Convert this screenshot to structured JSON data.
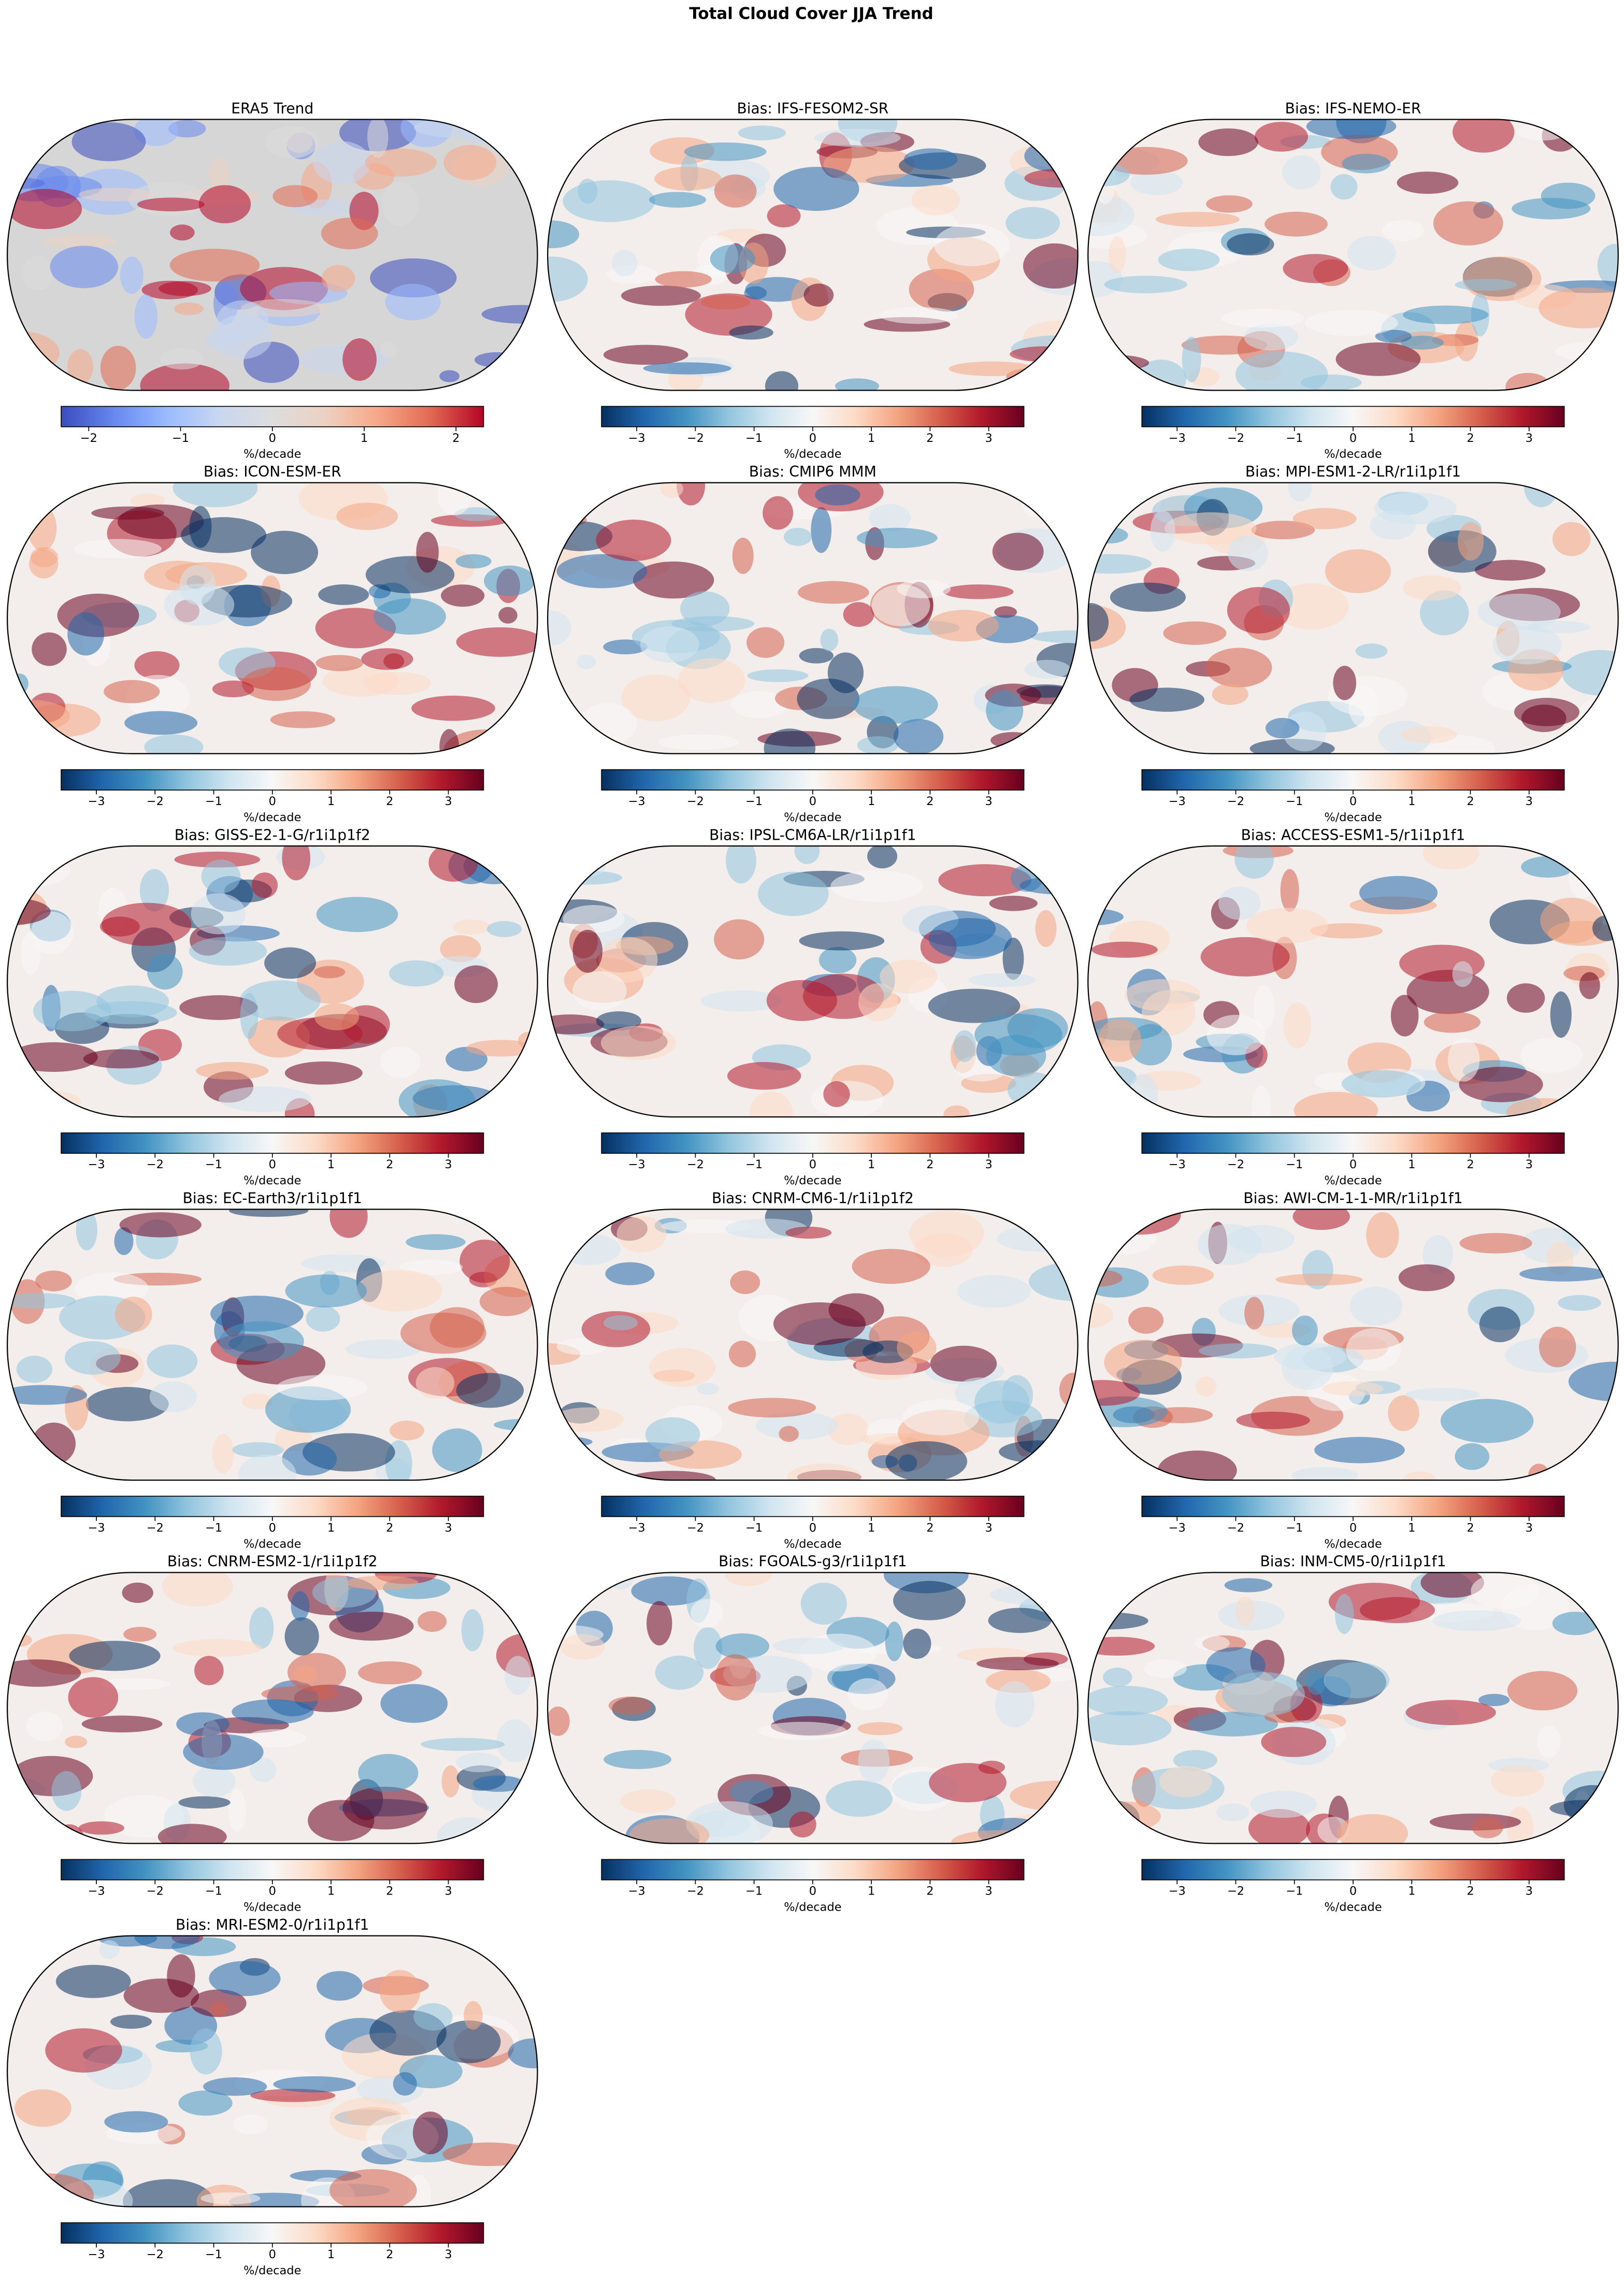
{
  "title": "Total Cloud Cover JJA Trend",
  "chart_data": [
    {
      "type": "map",
      "title": "ERA5 Trend",
      "colorbar": {
        "colormap": "coolwarm",
        "clim": [
          -2.3,
          2.3
        ],
        "ticks": [
          {
            "value": -2,
            "label": "−2"
          },
          {
            "value": -1,
            "label": "−1"
          },
          0,
          1,
          2
        ],
        "label": "%/decade"
      }
    },
    {
      "type": "map",
      "title": "Bias: IFS-FESOM2-SR",
      "colorbar": {
        "colormap": "RdBu_r",
        "clim": [
          -3.6,
          3.6
        ],
        "ticks": [
          {
            "value": -3,
            "label": "−3"
          },
          {
            "value": -2,
            "label": "−2"
          },
          {
            "value": -1,
            "label": "−1"
          },
          0,
          1,
          2,
          3
        ],
        "label": "%/decade"
      }
    },
    {
      "type": "map",
      "title": "Bias: IFS-NEMO-ER",
      "colorbar": {
        "colormap": "RdBu_r",
        "clim": [
          -3.6,
          3.6
        ],
        "ticks": [
          {
            "value": -3,
            "label": "−3"
          },
          {
            "value": -2,
            "label": "−2"
          },
          {
            "value": -1,
            "label": "−1"
          },
          0,
          1,
          2,
          3
        ],
        "label": "%/decade"
      }
    },
    {
      "type": "map",
      "title": "Bias: ICON-ESM-ER",
      "colorbar": {
        "colormap": "RdBu_r",
        "clim": [
          -3.6,
          3.6
        ],
        "ticks": [
          {
            "value": -3,
            "label": "−3"
          },
          {
            "value": -2,
            "label": "−2"
          },
          {
            "value": -1,
            "label": "−1"
          },
          0,
          1,
          2,
          3
        ],
        "label": "%/decade"
      }
    },
    {
      "type": "map",
      "title": "Bias: CMIP6 MMM",
      "colorbar": {
        "colormap": "RdBu_r",
        "clim": [
          -3.6,
          3.6
        ],
        "ticks": [
          {
            "value": -3,
            "label": "−3"
          },
          {
            "value": -2,
            "label": "−2"
          },
          {
            "value": -1,
            "label": "−1"
          },
          0,
          1,
          2,
          3
        ],
        "label": "%/decade"
      }
    },
    {
      "type": "map",
      "title": "Bias: MPI-ESM1-2-LR/r1i1p1f1",
      "colorbar": {
        "colormap": "RdBu_r",
        "clim": [
          -3.6,
          3.6
        ],
        "ticks": [
          {
            "value": -3,
            "label": "−3"
          },
          {
            "value": -2,
            "label": "−2"
          },
          {
            "value": -1,
            "label": "−1"
          },
          0,
          1,
          2,
          3
        ],
        "label": "%/decade"
      }
    },
    {
      "type": "map",
      "title": "Bias: GISS-E2-1-G/r1i1p1f2",
      "colorbar": {
        "colormap": "RdBu_r",
        "clim": [
          -3.6,
          3.6
        ],
        "ticks": [
          {
            "value": -3,
            "label": "−3"
          },
          {
            "value": -2,
            "label": "−2"
          },
          {
            "value": -1,
            "label": "−1"
          },
          0,
          1,
          2,
          3
        ],
        "label": "%/decade"
      }
    },
    {
      "type": "map",
      "title": "Bias: IPSL-CM6A-LR/r1i1p1f1",
      "colorbar": {
        "colormap": "RdBu_r",
        "clim": [
          -3.6,
          3.6
        ],
        "ticks": [
          {
            "value": -3,
            "label": "−3"
          },
          {
            "value": -2,
            "label": "−2"
          },
          {
            "value": -1,
            "label": "−1"
          },
          0,
          1,
          2,
          3
        ],
        "label": "%/decade"
      }
    },
    {
      "type": "map",
      "title": "Bias: ACCESS-ESM1-5/r1i1p1f1",
      "colorbar": {
        "colormap": "RdBu_r",
        "clim": [
          -3.6,
          3.6
        ],
        "ticks": [
          {
            "value": -3,
            "label": "−3"
          },
          {
            "value": -2,
            "label": "−2"
          },
          {
            "value": -1,
            "label": "−1"
          },
          0,
          1,
          2,
          3
        ],
        "label": "%/decade"
      }
    },
    {
      "type": "map",
      "title": "Bias: EC-Earth3/r1i1p1f1",
      "colorbar": {
        "colormap": "RdBu_r",
        "clim": [
          -3.6,
          3.6
        ],
        "ticks": [
          {
            "value": -3,
            "label": "−3"
          },
          {
            "value": -2,
            "label": "−2"
          },
          {
            "value": -1,
            "label": "−1"
          },
          0,
          1,
          2,
          3
        ],
        "label": "%/decade"
      }
    },
    {
      "type": "map",
      "title": "Bias: CNRM-CM6-1/r1i1p1f2",
      "colorbar": {
        "colormap": "RdBu_r",
        "clim": [
          -3.6,
          3.6
        ],
        "ticks": [
          {
            "value": -3,
            "label": "−3"
          },
          {
            "value": -2,
            "label": "−2"
          },
          {
            "value": -1,
            "label": "−1"
          },
          0,
          1,
          2,
          3
        ],
        "label": "%/decade"
      }
    },
    {
      "type": "map",
      "title": "Bias: AWI-CM-1-1-MR/r1i1p1f1",
      "colorbar": {
        "colormap": "RdBu_r",
        "clim": [
          -3.6,
          3.6
        ],
        "ticks": [
          {
            "value": -3,
            "label": "−3"
          },
          {
            "value": -2,
            "label": "−2"
          },
          {
            "value": -1,
            "label": "−1"
          },
          0,
          1,
          2,
          3
        ],
        "label": "%/decade"
      }
    },
    {
      "type": "map",
      "title": "Bias: CNRM-ESM2-1/r1i1p1f2",
      "colorbar": {
        "colormap": "RdBu_r",
        "clim": [
          -3.6,
          3.6
        ],
        "ticks": [
          {
            "value": -3,
            "label": "−3"
          },
          {
            "value": -2,
            "label": "−2"
          },
          {
            "value": -1,
            "label": "−1"
          },
          0,
          1,
          2,
          3
        ],
        "label": "%/decade"
      }
    },
    {
      "type": "map",
      "title": "Bias: FGOALS-g3/r1i1p1f1",
      "colorbar": {
        "colormap": "RdBu_r",
        "clim": [
          -3.6,
          3.6
        ],
        "ticks": [
          {
            "value": -3,
            "label": "−3"
          },
          {
            "value": -2,
            "label": "−2"
          },
          {
            "value": -1,
            "label": "−1"
          },
          0,
          1,
          2,
          3
        ],
        "label": "%/decade"
      }
    },
    {
      "type": "map",
      "title": "Bias: INM-CM5-0/r1i1p1f1",
      "colorbar": {
        "colormap": "RdBu_r",
        "clim": [
          -3.6,
          3.6
        ],
        "ticks": [
          {
            "value": -3,
            "label": "−3"
          },
          {
            "value": -2,
            "label": "−2"
          },
          {
            "value": -1,
            "label": "−1"
          },
          0,
          1,
          2,
          3
        ],
        "label": "%/decade"
      }
    },
    {
      "type": "map",
      "title": "Bias: MRI-ESM2-0/r1i1p1f1",
      "colorbar": {
        "colormap": "RdBu_r",
        "clim": [
          -3.6,
          3.6
        ],
        "ticks": [
          {
            "value": -3,
            "label": "−3"
          },
          {
            "value": -2,
            "label": "−2"
          },
          {
            "value": -1,
            "label": "−1"
          },
          0,
          1,
          2,
          3
        ],
        "label": "%/decade"
      }
    }
  ]
}
